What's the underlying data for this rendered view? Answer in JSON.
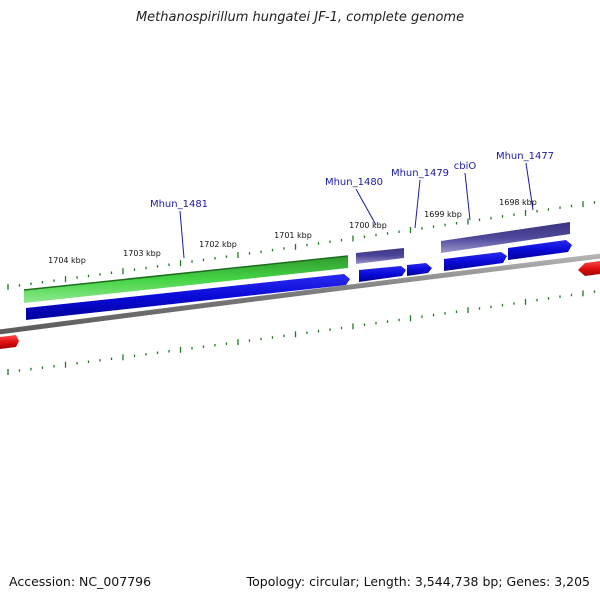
{
  "title": "Methanospirillum hungatei JF-1, complete genome",
  "footer": {
    "accession": "Accession: NC_007796",
    "summary": "Topology: circular; Length: 3,544,738 bp; Genes: 3,205"
  },
  "colors": {
    "backbone": "#8a8a8a",
    "ticks": "#1f7a1f",
    "gene_green": "#3fcf3f",
    "gene_blue": "#1010e0",
    "gene_purple": "#4b4494",
    "gene_red": "#e01010",
    "label": "#1a1aa6"
  },
  "ticks": [
    {
      "label": "1704 kbp"
    },
    {
      "label": "1703 kbp"
    },
    {
      "label": "1702 kbp"
    },
    {
      "label": "1701 kbp"
    },
    {
      "label": "1700 kbp"
    },
    {
      "label": "1699 kbp"
    },
    {
      "label": "1698 kbp"
    }
  ],
  "genes": [
    {
      "label": "Mhun_1481"
    },
    {
      "label": "Mhun_1480"
    },
    {
      "label": "Mhun_1479"
    },
    {
      "label": "cbiO"
    },
    {
      "label": "Mhun_1477"
    }
  ]
}
